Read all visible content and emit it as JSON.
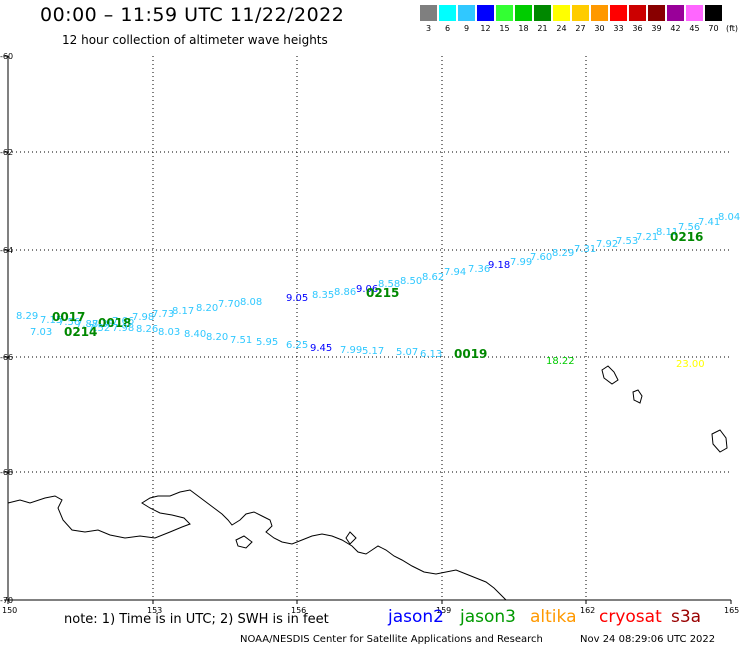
{
  "header": {
    "title": "00:00 – 11:59 UTC 11/22/2022",
    "subtitle": "12 hour collection of altimeter wave heights"
  },
  "color_scale": {
    "unit_label": "(ft)",
    "items": [
      {
        "label": "3",
        "color": "#7f7f7f"
      },
      {
        "label": "6",
        "color": "#00ffff"
      },
      {
        "label": "9",
        "color": "#30c8ff"
      },
      {
        "label": "12",
        "color": "#0000ff"
      },
      {
        "label": "15",
        "color": "#33ff33"
      },
      {
        "label": "18",
        "color": "#00cc00"
      },
      {
        "label": "21",
        "color": "#008800"
      },
      {
        "label": "24",
        "color": "#ffff00"
      },
      {
        "label": "27",
        "color": "#ffcc00"
      },
      {
        "label": "30",
        "color": "#ff9900"
      },
      {
        "label": "33",
        "color": "#ff0000"
      },
      {
        "label": "36",
        "color": "#cc0000"
      },
      {
        "label": "39",
        "color": "#880000"
      },
      {
        "label": "42",
        "color": "#990099"
      },
      {
        "label": "45",
        "color": "#ff66ff"
      },
      {
        "label": "70",
        "color": "#000000"
      }
    ]
  },
  "map": {
    "lon_range": [
      150,
      165
    ],
    "lat_range": [
      -60,
      -70
    ],
    "lon_ticks": [
      "150",
      "153",
      "156",
      "159",
      "162",
      "165"
    ],
    "lat_ticks": [
      "-60",
      "-62",
      "-64",
      "-66",
      "-68",
      "-70"
    ],
    "grid": "dotted"
  },
  "tracks": {
    "upper": {
      "color": "#30c8ff",
      "values": [
        "8.29",
        "7.15",
        "7.56",
        "7.88",
        "7.38",
        "7.66",
        "7.98",
        "7.73",
        "8.17",
        "8.20",
        "7.70",
        "8.08",
        "9.05",
        "8.35",
        "8.86",
        "9.06",
        "8.58",
        "8.50",
        "8.62",
        "7.94",
        "7.36",
        "9.18",
        "7.99",
        "7.60",
        "8.29",
        "7.31",
        "7.92",
        "7.53",
        "7.21",
        "8.11",
        "7.56",
        "7.41",
        "8.04"
      ],
      "time_labels": [
        "0017",
        "0018",
        "0215",
        "0216"
      ]
    },
    "lower": {
      "color": "#30c8ff",
      "values": [
        "7.03",
        "7.52",
        "7.98",
        "8.26",
        "8.03",
        "8.40",
        "8.20",
        "7.51",
        "5.95",
        "6.25",
        "9.45",
        "7.99",
        "5.17",
        "5.07",
        "6.13"
      ],
      "time_labels": [
        "0214",
        "0019"
      ]
    },
    "isolated": [
      {
        "value": "18.22",
        "color": "#00cc00"
      },
      {
        "value": "23.00",
        "color": "#ffff00"
      }
    ]
  },
  "footer": {
    "note": "note: 1) Time is in UTC; 2) SWH is in feet",
    "satellites": [
      {
        "name": "jason2",
        "color": "#0000ff"
      },
      {
        "name": "jason3",
        "color": "#009900"
      },
      {
        "name": "altika",
        "color": "#ff9900"
      },
      {
        "name": "cryosat",
        "color": "#ff0000"
      },
      {
        "name": "s3a",
        "color": "#990000"
      }
    ],
    "credit": "NOAA/NESDIS Center for Satellite Applications and Research",
    "timestamp": "Nov 24 08:29:06 UTC 2022"
  }
}
